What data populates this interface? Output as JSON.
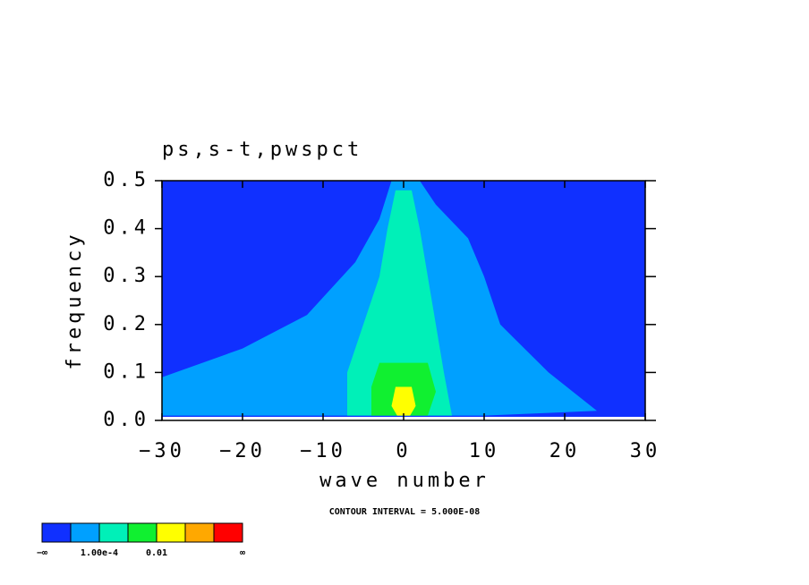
{
  "chart_data": {
    "type": "contour",
    "title": "ps,s-t,pwspct",
    "x_label": "wave number",
    "y_label": "frequency",
    "annotation": "CONTOUR INTERVAL = 5.000E-08",
    "xlim": [
      -30,
      30
    ],
    "ylim": [
      0,
      0.5
    ],
    "xticks": [
      {
        "value": -30,
        "label": "−30"
      },
      {
        "value": -20,
        "label": "−20"
      },
      {
        "value": -10,
        "label": "−10"
      },
      0,
      10,
      20,
      30
    ],
    "yticks": [
      {
        "value": 0,
        "label": "0.0"
      },
      0.1,
      0.2,
      0.3,
      0.4,
      0.5
    ],
    "colorbar": {
      "colors": [
        "#1030ff",
        "#00a0ff",
        "#00f0b8",
        "#10f030",
        "#ffff00",
        "#ffa800",
        "#ff0000"
      ],
      "labels": [
        "−∞",
        "1.00e-4",
        "0.01",
        "∞"
      ]
    }
  }
}
